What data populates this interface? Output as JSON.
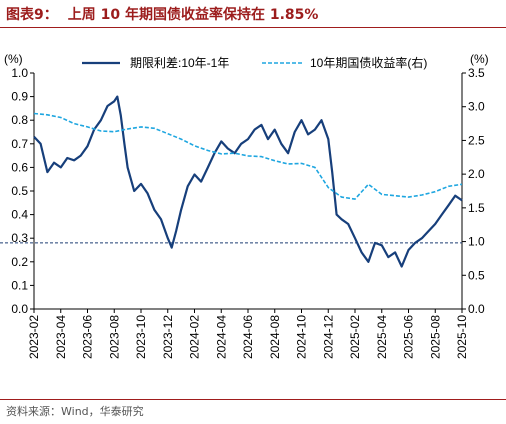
{
  "figure": {
    "label": "图表9：",
    "title": "上周 10 年期国债收益率保持在 1.85%",
    "source": "资料来源：Wind，华泰研究"
  },
  "colors": {
    "title": "#9c1c1c",
    "rule": "#a01d1d",
    "spread_series": "#173f7b",
    "yield_series": "#1ea6e0",
    "reference_line": "#1f3f73",
    "axis_text": "#000000"
  },
  "chart_data": {
    "type": "line",
    "left_axis": {
      "unit": "(%)",
      "ylim": [
        0.0,
        1.0
      ],
      "ticks": [
        "0.0",
        "0.1",
        "0.2",
        "0.3",
        "0.4",
        "0.5",
        "0.6",
        "0.7",
        "0.8",
        "0.9",
        "1.0"
      ]
    },
    "right_axis": {
      "unit": "(%)",
      "ylim": [
        0.0,
        3.5
      ],
      "ticks": [
        "0.0",
        "0.5",
        "1.0",
        "1.5",
        "2.0",
        "2.5",
        "3.0",
        "3.5"
      ]
    },
    "x_ticks": [
      "2023-02",
      "2023-04",
      "2023-06",
      "2023-08",
      "2023-10",
      "2023-12",
      "2024-02",
      "2024-04",
      "2024-06",
      "2024-08",
      "2024-10",
      "2024-12",
      "2025-02",
      "2025-04",
      "2025-06",
      "2025-08",
      "2025-10"
    ],
    "legend_position": "top",
    "grid": false,
    "reference_line": {
      "axis": "left",
      "value": 0.28,
      "style": "dashed"
    },
    "series": [
      {
        "name": "期限利差:10年-1年",
        "axis": "left",
        "style": "solid",
        "points": [
          [
            "2023-02",
            0.73
          ],
          [
            "2023-02-16",
            0.7
          ],
          [
            "2023-03",
            0.58
          ],
          [
            "2023-03-16",
            0.62
          ],
          [
            "2023-04",
            0.6
          ],
          [
            "2023-04-16",
            0.64
          ],
          [
            "2023-05",
            0.63
          ],
          [
            "2023-05-16",
            0.65
          ],
          [
            "2023-06",
            0.69
          ],
          [
            "2023-06-16",
            0.76
          ],
          [
            "2023-07",
            0.8
          ],
          [
            "2023-07-16",
            0.86
          ],
          [
            "2023-08",
            0.88
          ],
          [
            "2023-08-08",
            0.9
          ],
          [
            "2023-08-16",
            0.82
          ],
          [
            "2023-08-24",
            0.7
          ],
          [
            "2023-09",
            0.6
          ],
          [
            "2023-09-16",
            0.5
          ],
          [
            "2023-10",
            0.53
          ],
          [
            "2023-10-16",
            0.49
          ],
          [
            "2023-11",
            0.42
          ],
          [
            "2023-11-16",
            0.38
          ],
          [
            "2023-12",
            0.3
          ],
          [
            "2023-12-10",
            0.26
          ],
          [
            "2023-12-20",
            0.33
          ],
          [
            "2024-01",
            0.42
          ],
          [
            "2024-01-16",
            0.52
          ],
          [
            "2024-02",
            0.57
          ],
          [
            "2024-02-16",
            0.54
          ],
          [
            "2024-03",
            0.6
          ],
          [
            "2024-03-16",
            0.66
          ],
          [
            "2024-04",
            0.71
          ],
          [
            "2024-04-16",
            0.68
          ],
          [
            "2024-05",
            0.66
          ],
          [
            "2024-05-16",
            0.7
          ],
          [
            "2024-06",
            0.72
          ],
          [
            "2024-06-16",
            0.76
          ],
          [
            "2024-07",
            0.78
          ],
          [
            "2024-07-16",
            0.72
          ],
          [
            "2024-08",
            0.76
          ],
          [
            "2024-08-16",
            0.7
          ],
          [
            "2024-09",
            0.66
          ],
          [
            "2024-09-16",
            0.75
          ],
          [
            "2024-10",
            0.8
          ],
          [
            "2024-10-16",
            0.74
          ],
          [
            "2024-11",
            0.76
          ],
          [
            "2024-11-16",
            0.8
          ],
          [
            "2024-12",
            0.72
          ],
          [
            "2024-12-10",
            0.58
          ],
          [
            "2024-12-20",
            0.4
          ],
          [
            "2025-01",
            0.38
          ],
          [
            "2025-01-16",
            0.36
          ],
          [
            "2025-02",
            0.3
          ],
          [
            "2025-02-16",
            0.24
          ],
          [
            "2025-03",
            0.2
          ],
          [
            "2025-03-16",
            0.28
          ],
          [
            "2025-04",
            0.27
          ],
          [
            "2025-04-16",
            0.22
          ],
          [
            "2025-05",
            0.24
          ],
          [
            "2025-05-16",
            0.18
          ],
          [
            "2025-06",
            0.25
          ],
          [
            "2025-06-16",
            0.28
          ],
          [
            "2025-07",
            0.3
          ],
          [
            "2025-07-16",
            0.33
          ],
          [
            "2025-08",
            0.36
          ],
          [
            "2025-08-16",
            0.4
          ],
          [
            "2025-09",
            0.44
          ],
          [
            "2025-09-16",
            0.48
          ],
          [
            "2025-10",
            0.46
          ]
        ]
      },
      {
        "name": "10年期国债收益率(右)",
        "axis": "right",
        "style": "dashed",
        "points": [
          [
            "2023-02",
            2.9
          ],
          [
            "2023-03",
            2.88
          ],
          [
            "2023-04",
            2.84
          ],
          [
            "2023-05",
            2.75
          ],
          [
            "2023-06",
            2.7
          ],
          [
            "2023-07",
            2.64
          ],
          [
            "2023-08",
            2.63
          ],
          [
            "2023-09",
            2.67
          ],
          [
            "2023-10",
            2.7
          ],
          [
            "2023-11",
            2.68
          ],
          [
            "2023-12",
            2.6
          ],
          [
            "2024-01",
            2.52
          ],
          [
            "2024-02",
            2.42
          ],
          [
            "2024-03",
            2.35
          ],
          [
            "2024-04",
            2.3
          ],
          [
            "2024-05",
            2.31
          ],
          [
            "2024-06",
            2.27
          ],
          [
            "2024-07",
            2.26
          ],
          [
            "2024-08",
            2.2
          ],
          [
            "2024-09",
            2.15
          ],
          [
            "2024-10",
            2.16
          ],
          [
            "2024-11",
            2.1
          ],
          [
            "2024-12",
            1.8
          ],
          [
            "2025-01",
            1.66
          ],
          [
            "2025-02",
            1.63
          ],
          [
            "2025-03",
            1.85
          ],
          [
            "2025-04",
            1.7
          ],
          [
            "2025-05",
            1.68
          ],
          [
            "2025-06",
            1.66
          ],
          [
            "2025-07",
            1.69
          ],
          [
            "2025-08",
            1.74
          ],
          [
            "2025-09",
            1.82
          ],
          [
            "2025-10",
            1.85
          ]
        ]
      }
    ]
  }
}
